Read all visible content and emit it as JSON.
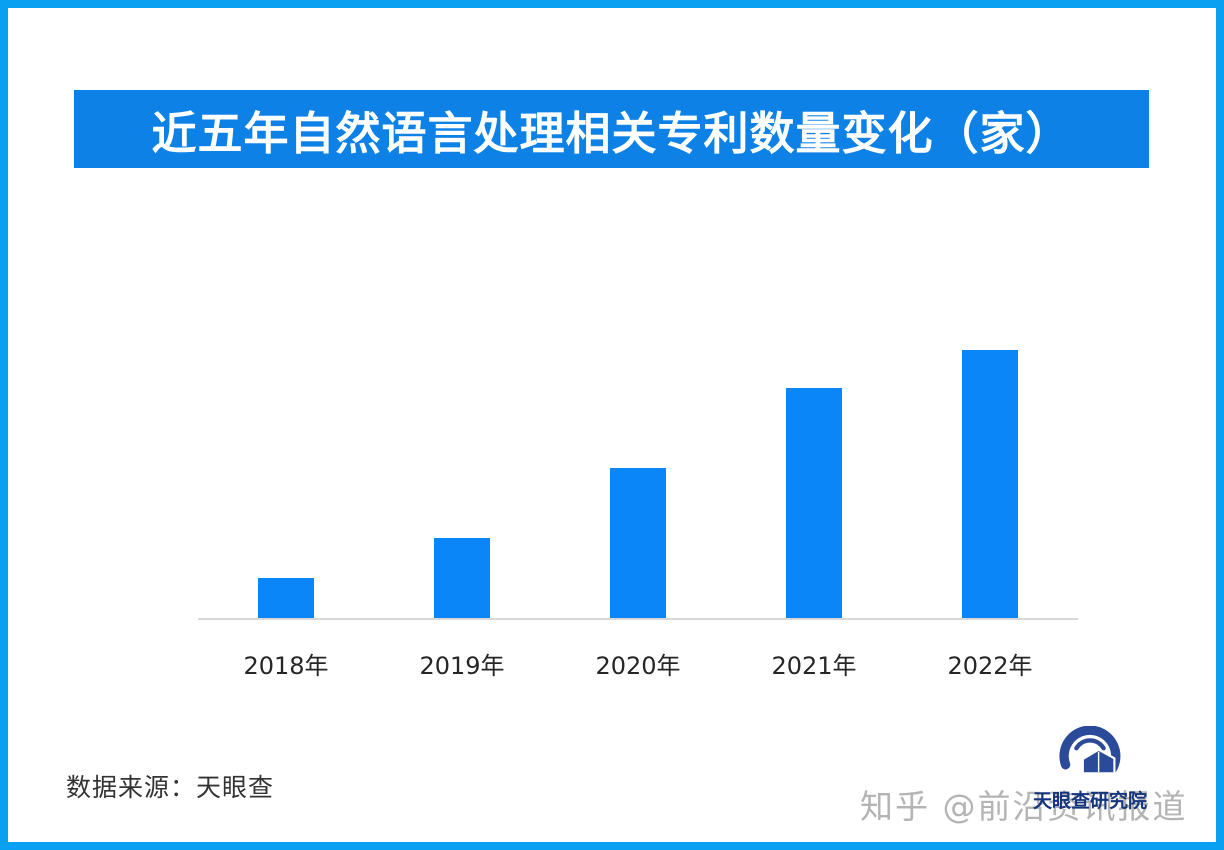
{
  "page": {
    "border_color": "#0AA0F2",
    "background_color": "#FFFFFF"
  },
  "title_banner": {
    "text": "近五年自然语言处理相关专利数量变化（家）",
    "bg_color": "#0D81E6",
    "text_color": "#FFFFFF"
  },
  "chart_data": {
    "type": "bar",
    "title": "近五年自然语言处理相关专利数量变化（家）",
    "categories": [
      "2018年",
      "2019年",
      "2020年",
      "2021年",
      "2022年"
    ],
    "values": [
      40,
      80,
      150,
      230,
      268
    ],
    "values_note": "no numeric value labels or y-axis shown; values are relative bar heights estimated in pixels",
    "unit": "家",
    "xlabel": "",
    "ylabel": "",
    "grid": false,
    "legend": false,
    "bar_color": "#0B86F8",
    "axis_line_color": "#D8D8D8",
    "tick_label_color": "#262626"
  },
  "source": {
    "text": "数据来源：天眼查"
  },
  "logo": {
    "label": "天眼查研究院",
    "emblem": "tianyancha-research-institute-emblem",
    "emblem_color": "#2B4A99",
    "label_color": "#16357D"
  },
  "watermark": {
    "text": "知乎 @前沿资讯报道",
    "color": "#B4B4B4"
  }
}
